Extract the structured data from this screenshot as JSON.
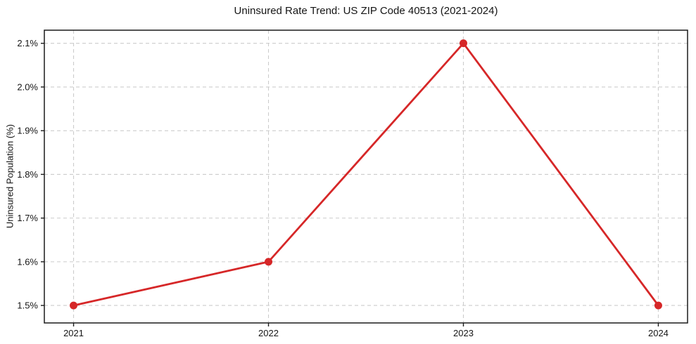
{
  "page": {
    "background": "#ffffff"
  },
  "chart_data": {
    "type": "line",
    "title": "Uninsured Rate Trend: US ZIP Code 40513 (2021-2024)",
    "xlabel": "",
    "ylabel": "Uninsured Population (%)",
    "x": [
      2021,
      2022,
      2023,
      2024
    ],
    "series": [
      {
        "name": "Uninsured Population (%)",
        "values": [
          1.5,
          1.6,
          2.1,
          1.5
        ],
        "color": "#d62728",
        "marker": "circle",
        "line_width": 2.8,
        "marker_radius": 5.5
      }
    ],
    "xticks": {
      "values": [
        2021,
        2022,
        2023,
        2024
      ],
      "labels": [
        "2021",
        "2022",
        "2023",
        "2024"
      ]
    },
    "yticks": {
      "values": [
        1.5,
        1.6,
        1.7,
        1.8,
        1.9,
        2.0,
        2.1
      ],
      "labels": [
        "1.5%",
        "1.6%",
        "1.7%",
        "1.8%",
        "1.9%",
        "2.0%",
        "2.1%"
      ]
    },
    "xlim": [
      2020.85,
      2024.15
    ],
    "ylim": [
      1.46,
      2.13
    ],
    "grid": {
      "show": true,
      "style": "dashed",
      "color": "#cccccc"
    },
    "legend": {
      "show": false
    },
    "axis_color": "#1a1a1a"
  }
}
